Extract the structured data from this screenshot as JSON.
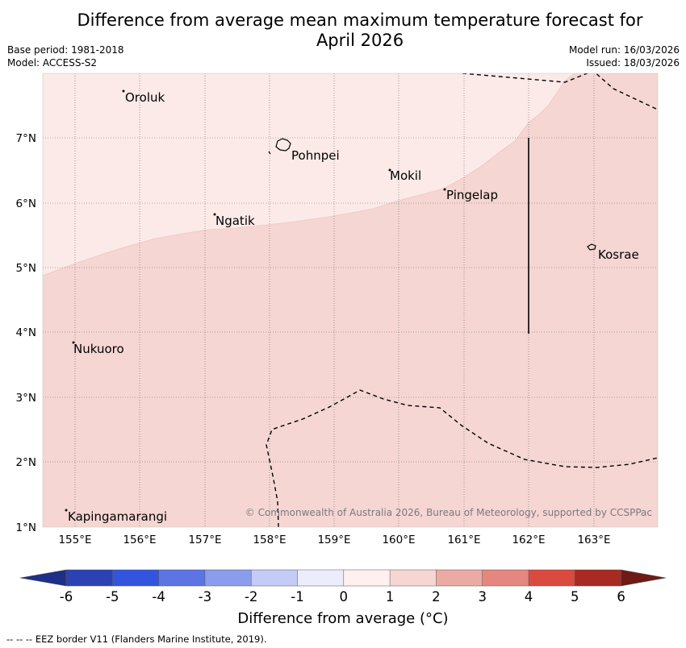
{
  "header": {
    "title_line1": "Difference from average mean maximum temperature forecast for",
    "title_line2": "April 2026",
    "base_period": "Base period: 1981-2018",
    "model": "Model: ACCESS-S2",
    "model_run": "Model run: 16/03/2026",
    "issued": "Issued: 18/03/2026"
  },
  "map": {
    "lon_labels": [
      "155°E",
      "156°E",
      "157°E",
      "158°E",
      "159°E",
      "160°E",
      "161°E",
      "162°E",
      "163°E"
    ],
    "lat_labels": [
      "7°N",
      "6°N",
      "5°N",
      "4°N",
      "3°N",
      "2°N",
      "1°N"
    ],
    "places": {
      "oroluk": "Oroluk",
      "pohnpei": "Pohnpei",
      "mokil": "Mokil",
      "pingelap": "Pingelap",
      "ngatik": "Ngatik",
      "kosrae": "Kosrae",
      "nukuoro": "Nukuoro",
      "kapingamarangi": "Kapingamarangi"
    },
    "credit": "© Commonwealth of Australia 2026, Bureau of Meteorology, supported by CCSPPac",
    "fill_colors": {
      "band_0_1": "#fbeae8",
      "band_1_2": "#f5d6d3"
    }
  },
  "colorbar": {
    "ticks": [
      "-6",
      "-5",
      "-4",
      "-3",
      "-2",
      "-1",
      "0",
      "1",
      "2",
      "3",
      "4",
      "5",
      "6"
    ],
    "colors": [
      "#1e2f88",
      "#2a42b4",
      "#3354de",
      "#5c74e4",
      "#8b9cec",
      "#c4cbf5",
      "#ecedfc",
      "#fdf0ef",
      "#f5d6d3",
      "#ecaaa5",
      "#e5867f",
      "#db4a3f",
      "#a82a23",
      "#6e1a15"
    ],
    "label": "Difference from average (°C)"
  },
  "footnote": "--  --  -- EEZ border V11 (Flanders Marine Institute, 2019)."
}
